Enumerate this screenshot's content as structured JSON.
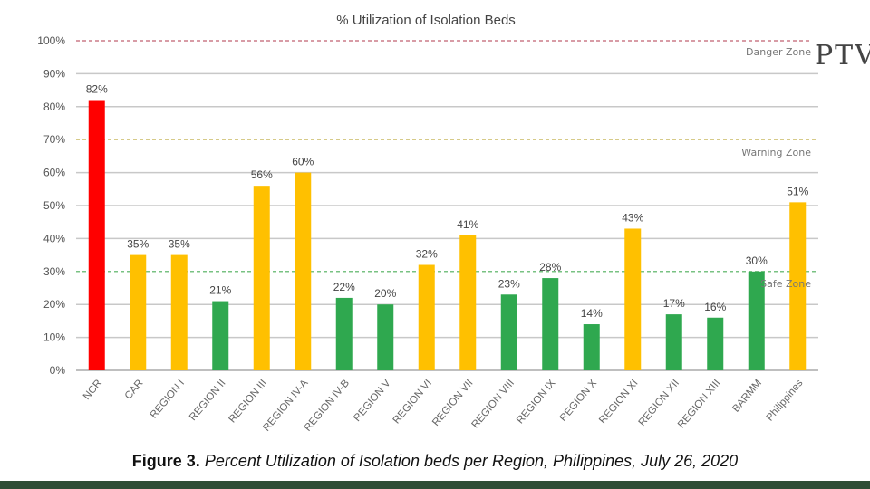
{
  "chart_data": {
    "type": "bar",
    "title": "% Utilization of Isolation Beds",
    "xlabel": "",
    "ylabel": "",
    "ylim": [
      0,
      100
    ],
    "yticks": [
      "0%",
      "10%",
      "20%",
      "30%",
      "40%",
      "50%",
      "60%",
      "70%",
      "80%",
      "90%",
      "100%"
    ],
    "grid": true,
    "categories": [
      "NCR",
      "CAR",
      "REGION I",
      "REGION II",
      "REGION III",
      "REGION IV-A",
      "REGION IV-B",
      "REGION V",
      "REGION VI",
      "REGION VII",
      "REGION VIII",
      "REGION IX",
      "REGION X",
      "REGION XI",
      "REGION XII",
      "REGION XIII",
      "BARMM",
      "Philippines"
    ],
    "values": [
      82,
      35,
      35,
      21,
      56,
      60,
      22,
      20,
      32,
      41,
      23,
      28,
      14,
      43,
      17,
      16,
      30,
      51
    ],
    "zones": [
      {
        "label": "Danger Zone",
        "value": 100,
        "color": "#c06070"
      },
      {
        "label": "Warning Zone",
        "value": 70,
        "color": "#c8b860"
      },
      {
        "label": "Safe Zone",
        "value": 30,
        "color": "#4cae5a"
      }
    ],
    "colors": {
      "danger": "#ff0000",
      "warning": "#ffc000",
      "safe": "#2fa84f"
    }
  },
  "caption": {
    "bold": "Figure 3.",
    "italic": "Percent Utilization of Isolation beds per Region, Philippines, July 26, 2020"
  },
  "watermark": "PTV"
}
